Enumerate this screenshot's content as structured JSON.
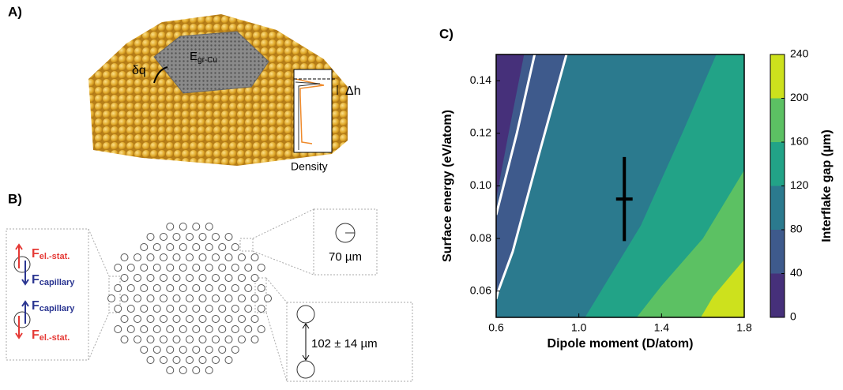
{
  "panel_a": {
    "label": "A)",
    "charge": "δq",
    "energy": "E",
    "energy_sub": "gr-Cu",
    "height": "Δh",
    "density": "Density"
  },
  "panel_b": {
    "label": "B)",
    "force": "F",
    "electrostatic": "el.-stat.",
    "capillary": "capillary",
    "diameter": "70 µm",
    "spacing": "102 ± 14 µm"
  },
  "chart_data": {
    "type": "contour",
    "label": "C)",
    "x_label": "Dipole moment (D/atom)",
    "y_label": "Surface energy (eV/atom)",
    "xlim": [
      0.6,
      1.8
    ],
    "ylim": [
      0.05,
      0.15
    ],
    "xticks": [
      0.6,
      {
        "value": 1,
        "label": "1.0"
      },
      1.4,
      1.8
    ],
    "yticks": [
      0.06,
      0.08,
      {
        "value": 0.1,
        "label": "0.10"
      },
      0.12,
      0.14
    ],
    "colorbar": {
      "label": "Interflake gap (µm)",
      "lim": [
        0,
        240
      ],
      "ticks": [
        0,
        40,
        80,
        120,
        160,
        200,
        240
      ],
      "colors": [
        "#46307a",
        "#3e5a8c",
        "#2b7a8e",
        "#22a387",
        "#5cc163",
        "#cde11d"
      ]
    },
    "contours": [
      {
        "level": 40,
        "x": [
          0.735,
          0.66,
          0.6
        ],
        "y": [
          0.15,
          0.12,
          0.095
        ]
      },
      {
        "level": 80,
        "x": [
          0.94,
          0.8,
          0.68,
          0.61,
          0.6
        ],
        "y": [
          0.15,
          0.11,
          0.075,
          0.06,
          0.057
        ]
      },
      {
        "level": 120,
        "x": [
          1.665,
          1.5,
          1.3,
          1.03
        ],
        "y": [
          0.15,
          0.12,
          0.085,
          0.05
        ]
      },
      {
        "level": 160,
        "x": [
          1.8,
          1.6,
          1.4,
          1.28
        ],
        "y": [
          0.106,
          0.08,
          0.062,
          0.05
        ]
      },
      {
        "level": 200,
        "x": [
          1.8,
          1.65,
          1.59
        ],
        "y": [
          0.072,
          0.058,
          0.05
        ]
      }
    ],
    "white_curves": [
      {
        "x": [
          0.786,
          0.7,
          0.6
        ],
        "y": [
          0.15,
          0.12,
          0.089
        ]
      },
      {
        "x": [
          0.94,
          0.8,
          0.68,
          0.61,
          0.6
        ],
        "y": [
          0.15,
          0.11,
          0.075,
          0.06,
          0.057
        ]
      }
    ],
    "marker": {
      "x": 1.22,
      "y": 0.095,
      "xerr": 0.04,
      "yerr": 0.016
    }
  }
}
